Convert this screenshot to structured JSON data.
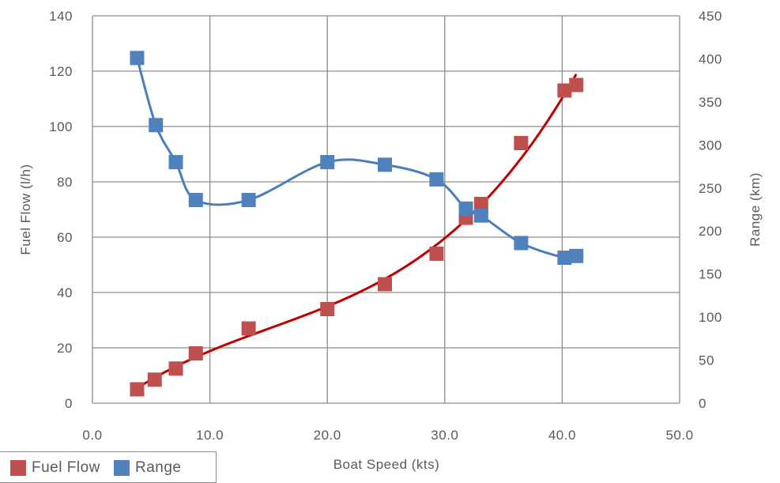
{
  "chart_data": {
    "type": "scatter",
    "title": "",
    "xlabel": "Boat Speed (kts)",
    "ylabel": "Fuel Flow (l/h)",
    "y2label": "Range (km)",
    "xlim": [
      0,
      50
    ],
    "ylim": [
      0,
      140
    ],
    "y2lim": [
      0,
      450
    ],
    "xticks": [
      "0.0",
      "10.0",
      "20.0",
      "30.0",
      "40.0",
      "50.0"
    ],
    "yticks": [
      "0",
      "20",
      "40",
      "60",
      "80",
      "100",
      "120",
      "140"
    ],
    "y2ticks": [
      "0",
      "50",
      "100",
      "150",
      "200",
      "250",
      "300",
      "350",
      "400",
      "450"
    ],
    "grid": true,
    "legend_position": "bottom-left",
    "series": [
      {
        "name": "Fuel Flow",
        "axis": "left",
        "color": "#c0504d",
        "trend_color": "#c00000",
        "marker": "square",
        "x": [
          3.8,
          5.3,
          7.1,
          8.8,
          13.3,
          20.0,
          24.9,
          29.3,
          31.8,
          33.1,
          36.5,
          40.2,
          41.2
        ],
        "y": [
          5,
          8.5,
          12.5,
          18,
          27,
          34,
          43,
          54,
          67,
          72,
          94,
          113,
          115
        ]
      },
      {
        "name": "Range",
        "axis": "right",
        "color": "#4f81bd",
        "trend_color": "#4a7ebb",
        "marker": "square",
        "x": [
          3.8,
          5.4,
          7.1,
          8.8,
          13.3,
          20.0,
          24.9,
          29.3,
          31.8,
          33.1,
          36.5,
          40.2,
          41.2
        ],
        "y": [
          401,
          323,
          280,
          236,
          236,
          280,
          277,
          260,
          226,
          218,
          186,
          169,
          171
        ]
      }
    ]
  }
}
